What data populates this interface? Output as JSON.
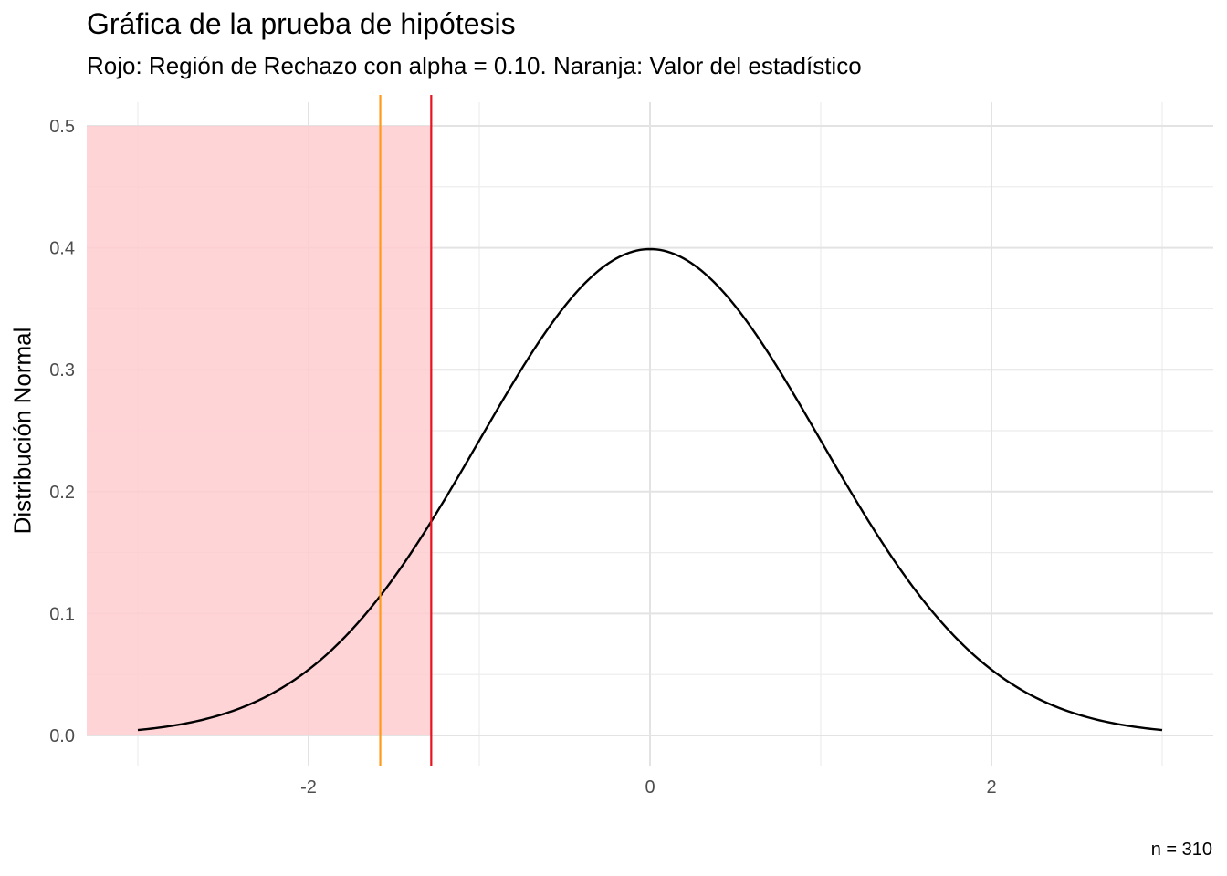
{
  "chart_data": {
    "type": "line",
    "title": "Gráfica de la prueba de hipótesis",
    "subtitle": "Rojo: Región de Rechazo con alpha = 0.10. Naranja: Valor del estadístico",
    "caption": "n = 310",
    "xlabel": "",
    "ylabel": "Distribución Normal",
    "xlim": [
      -3.3,
      3.3
    ],
    "ylim": [
      0,
      0.5
    ],
    "x_ticks": [
      -2,
      0,
      2
    ],
    "x_tick_labels": [
      "-2",
      "0",
      "2"
    ],
    "y_ticks": [
      0.0,
      0.1,
      0.2,
      0.3,
      0.4,
      0.5
    ],
    "y_tick_labels": [
      "0.0",
      "0.1",
      "0.2",
      "0.3",
      "0.4",
      "0.5"
    ],
    "grid": true,
    "curve": {
      "distribution": "normal",
      "mean": 0,
      "sd": 1,
      "x_range": [
        -3,
        3
      ],
      "color": "#000000"
    },
    "rejection_region": {
      "x_from": -3.3,
      "x_to": -1.2816,
      "y_top": 0.5,
      "color": "#ffccd0"
    },
    "critical_value": {
      "x": -1.2816,
      "color": "#e8131f"
    },
    "statistic_value": {
      "x": -1.58,
      "color": "#ff9a1a"
    }
  }
}
